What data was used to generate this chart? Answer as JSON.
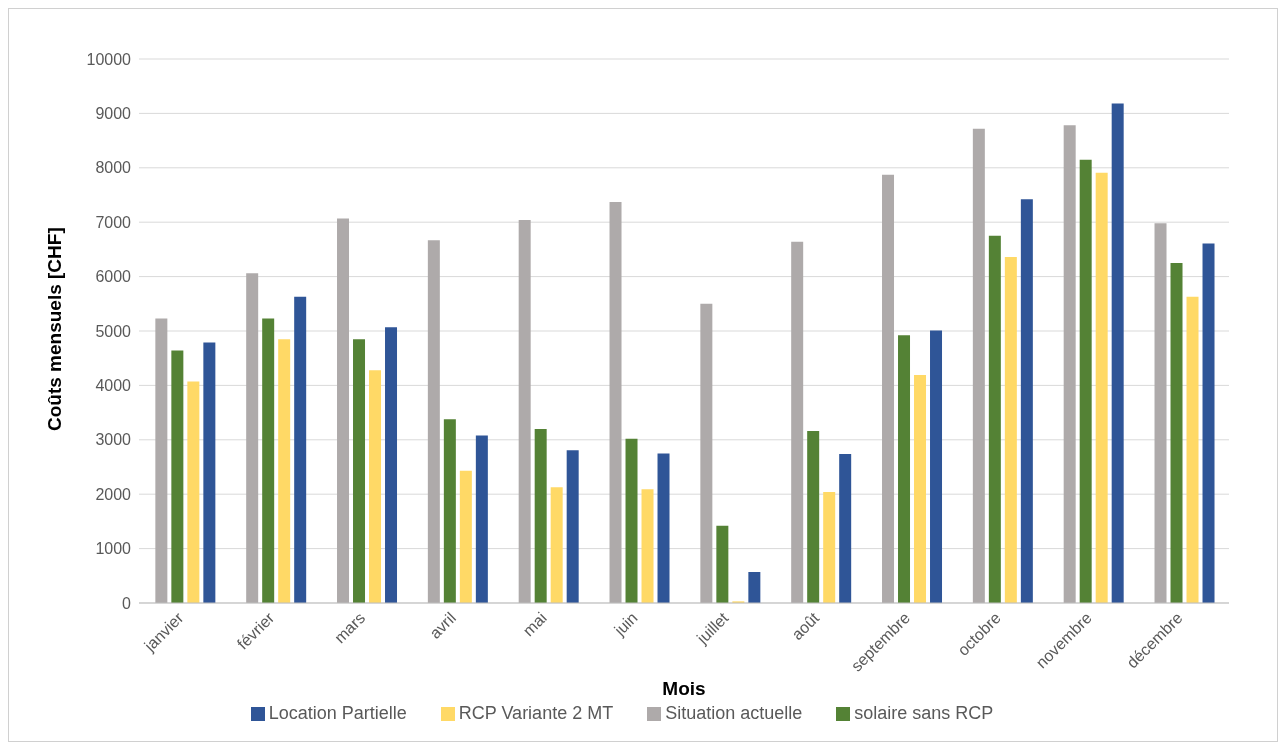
{
  "chart_data": {
    "type": "bar",
    "xlabel": "Mois",
    "ylabel": "Coûts mensuels [CHF]",
    "categories": [
      "janvier",
      "février",
      "mars",
      "avril",
      "mai",
      "juin",
      "juillet",
      "août",
      "septembre",
      "octobre",
      "novembre",
      "décembre"
    ],
    "series": [
      {
        "name": "Situation actuelle",
        "color": "#aeaaaa",
        "values": [
          5230,
          6060,
          7070,
          6670,
          7040,
          7370,
          5500,
          6640,
          7870,
          8720,
          8780,
          6980
        ]
      },
      {
        "name": "solaire sans RCP",
        "color": "#548235",
        "values": [
          4640,
          5230,
          4850,
          3380,
          3200,
          3020,
          1420,
          3160,
          4920,
          6750,
          8150,
          6250
        ]
      },
      {
        "name": "RCP Variante 2 MT",
        "color": "#ffd966",
        "values": [
          4070,
          4850,
          4280,
          2430,
          2130,
          2090,
          30,
          2040,
          4190,
          6360,
          7910,
          5630
        ]
      },
      {
        "name": "Location Partielle",
        "color": "#2f5597",
        "values": [
          4790,
          5630,
          5070,
          3080,
          2810,
          2750,
          570,
          2740,
          5010,
          7420,
          9180,
          6610
        ]
      }
    ],
    "ylim": [
      0,
      10000
    ],
    "yticks": [
      0,
      1000,
      2000,
      3000,
      4000,
      5000,
      6000,
      7000,
      8000,
      9000,
      10000
    ],
    "grid": "y",
    "legend": "bottom"
  }
}
